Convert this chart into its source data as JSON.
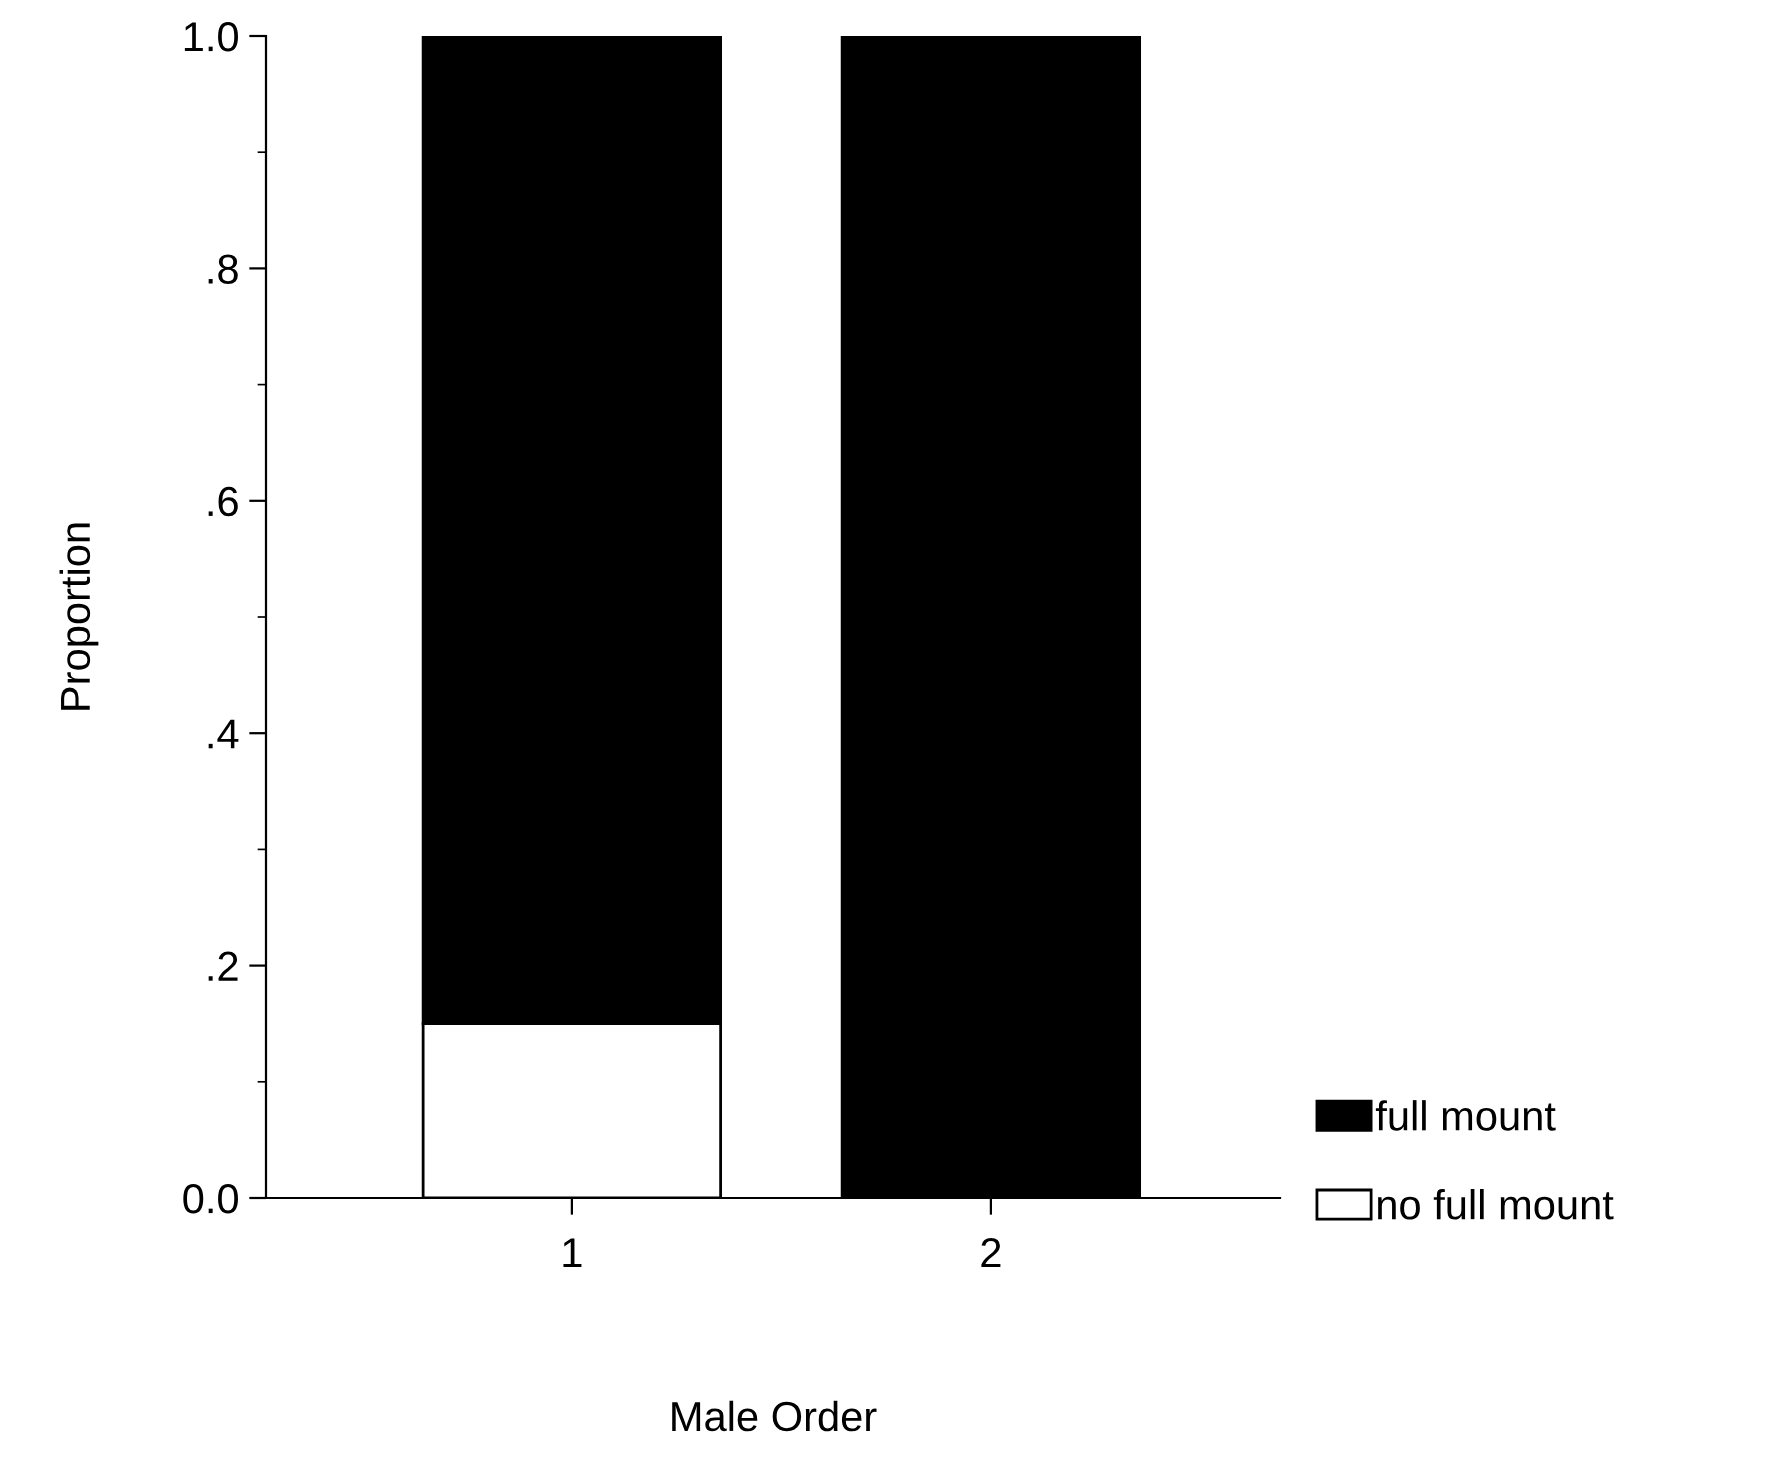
{
  "chart_data": {
    "type": "bar",
    "stacked": true,
    "xlabel": "Male Order",
    "ylabel": "Proportion",
    "categories": [
      "1",
      "2"
    ],
    "series": [
      {
        "name": "no full mount",
        "color": "#ffffff",
        "values": [
          0.15,
          0
        ]
      },
      {
        "name": "full mount",
        "color": "#000000",
        "values": [
          0.85,
          1.0
        ]
      }
    ],
    "ylim": [
      0,
      1
    ],
    "yticks": [
      {
        "value": 0,
        "label": "0.0"
      },
      {
        "value": 0.1,
        "label": null
      },
      {
        "value": 0.2,
        "label": ".2"
      },
      {
        "value": 0.3,
        "label": null
      },
      {
        "value": 0.4,
        "label": ".4"
      },
      {
        "value": 0.5,
        "label": null
      },
      {
        "value": 0.6,
        "label": ".6"
      },
      {
        "value": 0.7,
        "label": null
      },
      {
        "value": 0.8,
        "label": ".8"
      },
      {
        "value": 0.9,
        "label": null
      },
      {
        "value": 1,
        "label": "1.0"
      }
    ],
    "grid": false,
    "legend": "bottom right"
  }
}
